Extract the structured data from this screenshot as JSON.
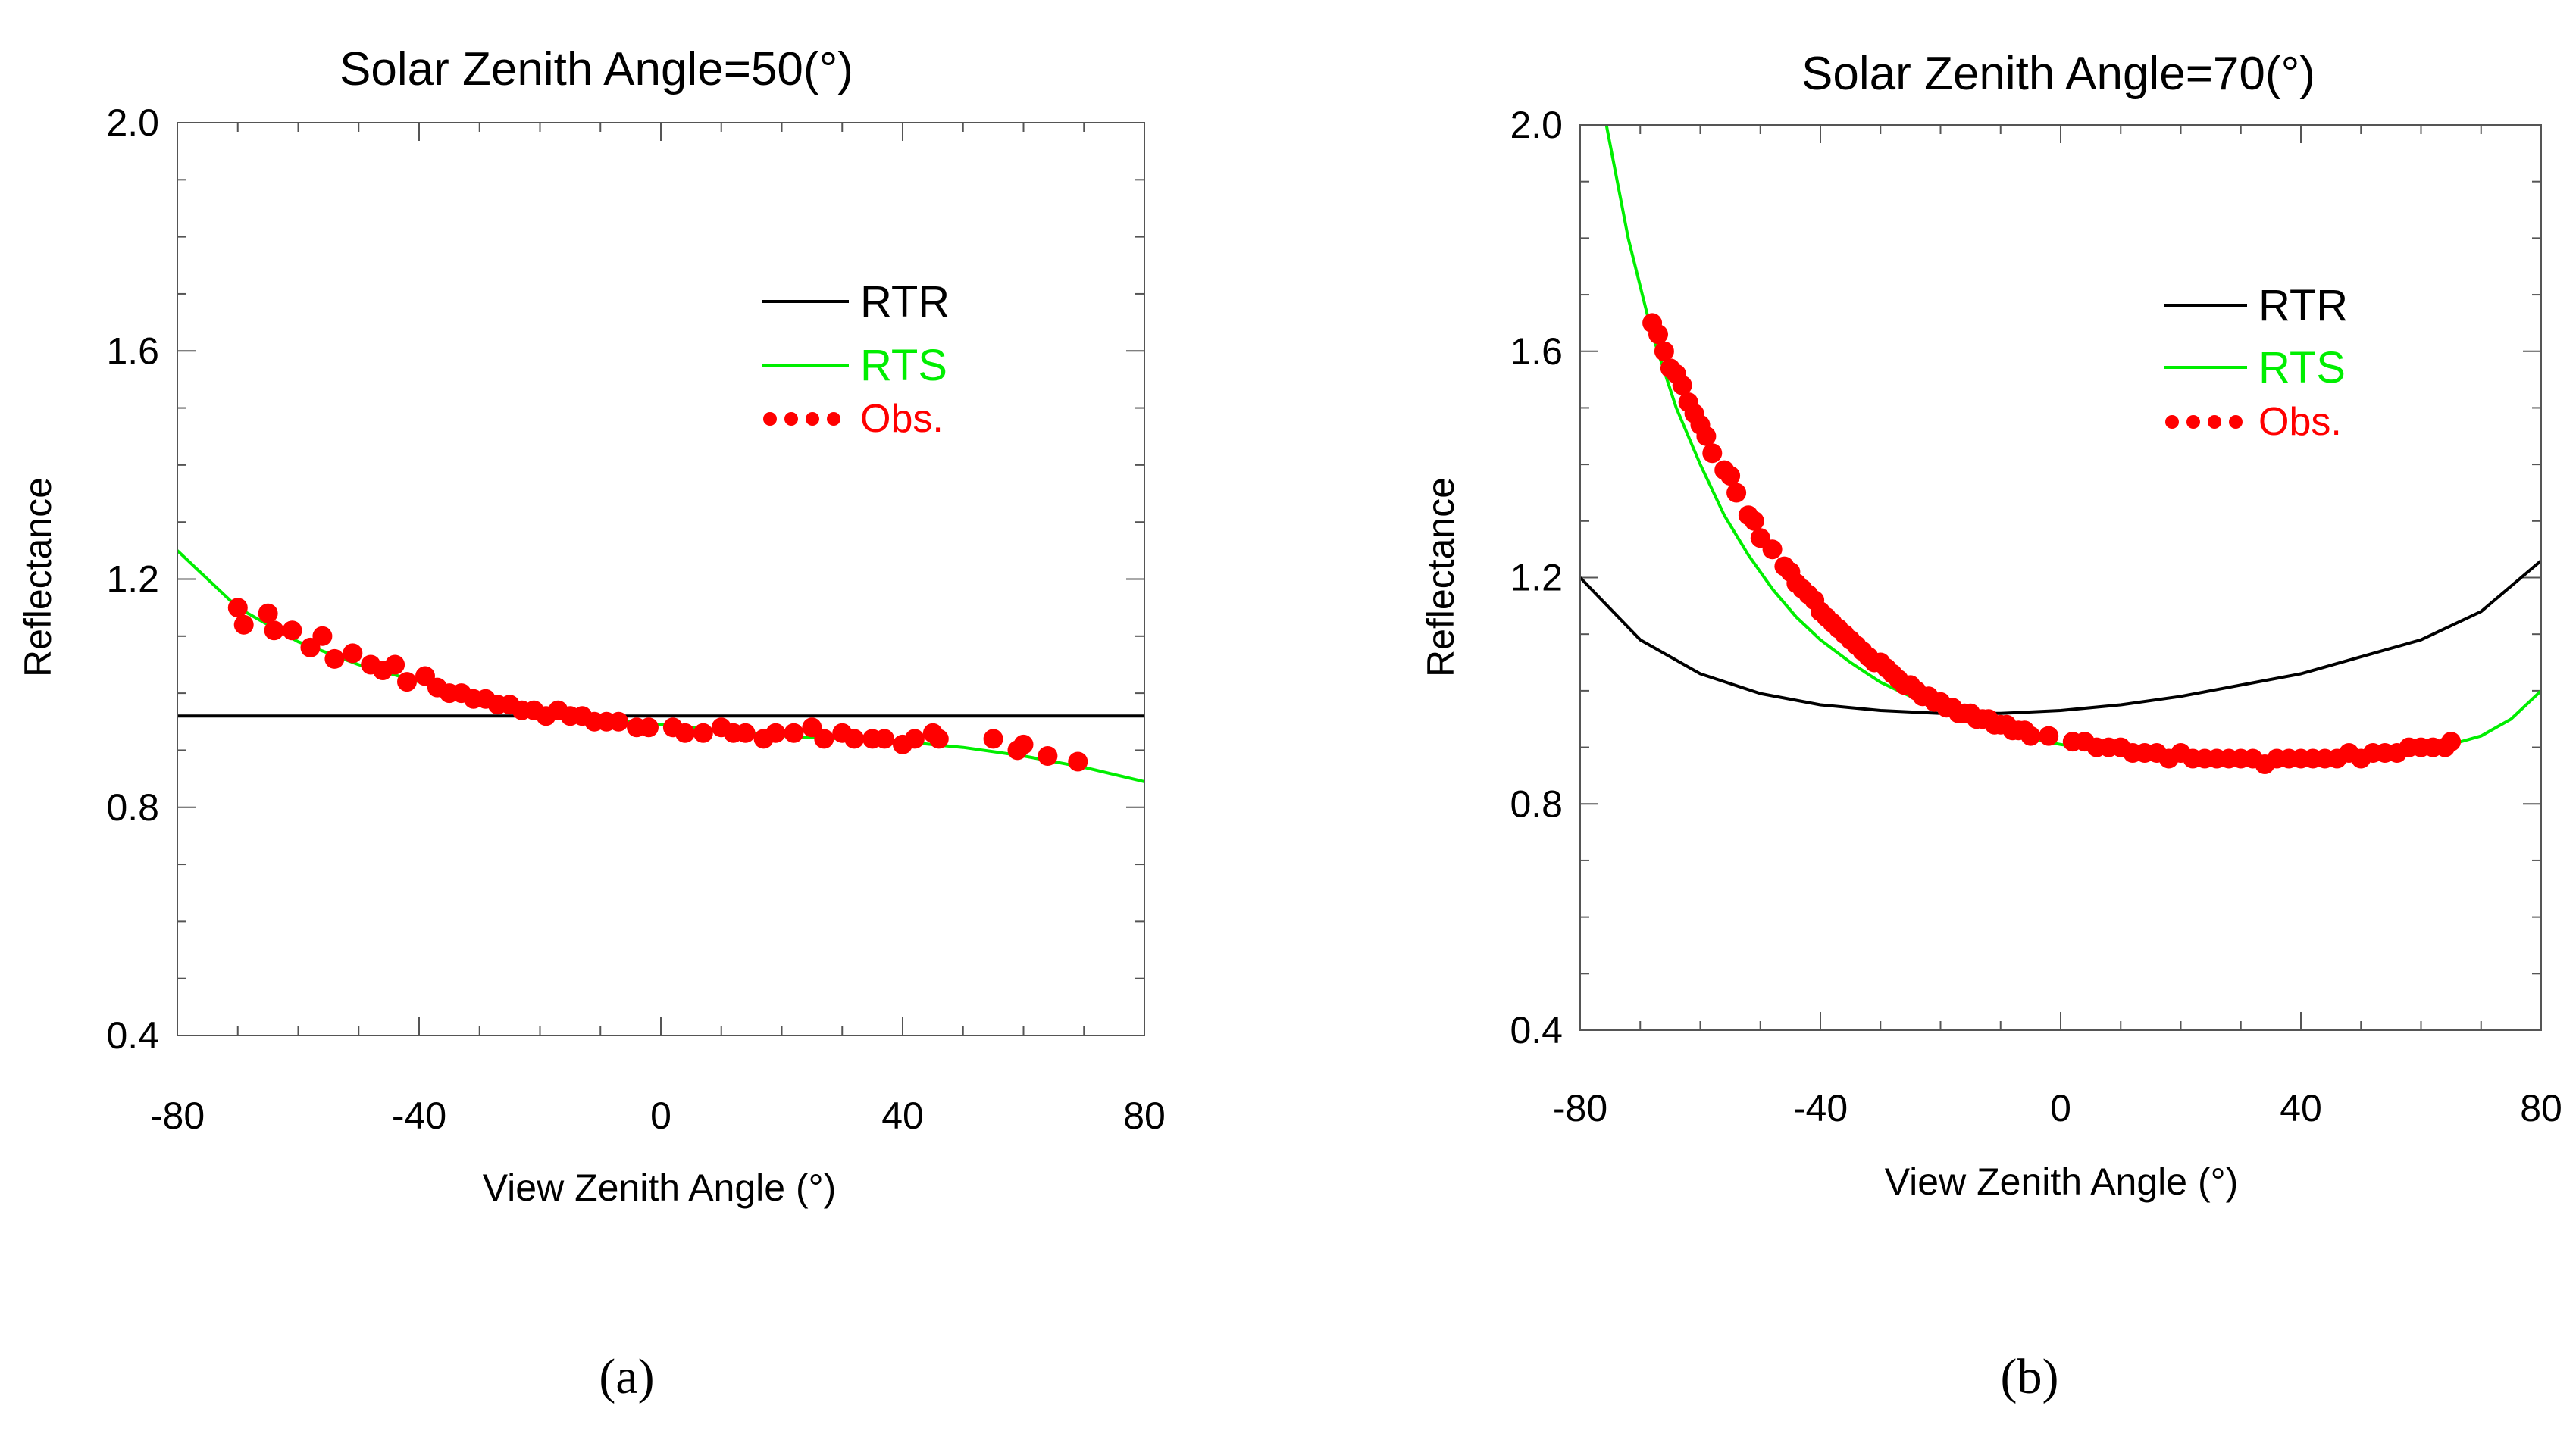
{
  "chart_data": [
    {
      "type": "line",
      "panel_label": "(a)",
      "title": "Solar Zenith Angle=50(°)",
      "xlabel": "View Zenith Angle (°)",
      "ylabel": "Reflectance",
      "xlim": [
        -80,
        80
      ],
      "ylim": [
        0.4,
        2.0
      ],
      "xticks": [
        -80,
        -40,
        0,
        40,
        80
      ],
      "yticks": [
        0.4,
        0.8,
        1.2,
        1.6,
        2.0
      ],
      "xtick_labels": [
        "-80",
        "-40",
        "0",
        "40",
        "80"
      ],
      "ytick_labels": [
        "0.4",
        "0.8",
        "1.2",
        "1.6",
        "2.0"
      ],
      "legend": [
        {
          "label": "RTR",
          "color": "#000000",
          "style": "line"
        },
        {
          "label": "RTS",
          "color": "#00ee00",
          "style": "line"
        },
        {
          "label": "Obs.",
          "color": "#ff0000",
          "style": "dots"
        }
      ],
      "series": [
        {
          "name": "RTR",
          "color": "#000000",
          "x": [
            -80,
            80
          ],
          "y": [
            0.96,
            0.96
          ]
        },
        {
          "name": "RTS",
          "color": "#00ee00",
          "x": [
            -80,
            -70,
            -60,
            -50,
            -40,
            -30,
            -20,
            -10,
            0,
            10,
            20,
            30,
            40,
            50,
            60,
            70,
            80
          ],
          "y": [
            1.25,
            1.15,
            1.09,
            1.05,
            1.02,
            0.99,
            0.97,
            0.955,
            0.945,
            0.935,
            0.925,
            0.92,
            0.915,
            0.905,
            0.89,
            0.87,
            0.845
          ]
        },
        {
          "name": "Obs.",
          "color": "#ff0000",
          "x": [
            -70,
            -69,
            -65,
            -64,
            -61,
            -58,
            -56,
            -54,
            -51,
            -48,
            -46,
            -44,
            -42,
            -39,
            -37,
            -35,
            -33,
            -31,
            -29,
            -27,
            -25,
            -23,
            -21,
            -19,
            -17,
            -15,
            -13,
            -11,
            -9,
            -7,
            -4,
            -2,
            2,
            4,
            7,
            10,
            12,
            14,
            17,
            19,
            22,
            25,
            27,
            30,
            32,
            35,
            37,
            40,
            42,
            45,
            46,
            55,
            59,
            60,
            64,
            69
          ],
          "y": [
            1.15,
            1.12,
            1.14,
            1.11,
            1.11,
            1.08,
            1.1,
            1.06,
            1.07,
            1.05,
            1.04,
            1.05,
            1.02,
            1.03,
            1.01,
            1.0,
            1.0,
            0.99,
            0.99,
            0.98,
            0.98,
            0.97,
            0.97,
            0.96,
            0.97,
            0.96,
            0.96,
            0.95,
            0.95,
            0.95,
            0.94,
            0.94,
            0.94,
            0.93,
            0.93,
            0.94,
            0.93,
            0.93,
            0.92,
            0.93,
            0.93,
            0.94,
            0.92,
            0.93,
            0.92,
            0.92,
            0.92,
            0.91,
            0.92,
            0.93,
            0.92,
            0.92,
            0.9,
            0.91,
            0.89,
            0.88
          ]
        }
      ]
    },
    {
      "type": "line",
      "panel_label": "(b)",
      "title": "Solar Zenith Angle=70(°)",
      "xlabel": "View Zenith Angle (°)",
      "ylabel": "Reflectance",
      "xlim": [
        -80,
        80
      ],
      "ylim": [
        0.4,
        2.0
      ],
      "xticks": [
        -80,
        -40,
        0,
        40,
        80
      ],
      "yticks": [
        0.4,
        0.8,
        1.2,
        1.6,
        2.0
      ],
      "xtick_labels": [
        "-80",
        "-40",
        "0",
        "40",
        "80"
      ],
      "ytick_labels": [
        "0.4",
        "0.8",
        "1.2",
        "1.6",
        "2.0"
      ],
      "legend": [
        {
          "label": "RTR",
          "color": "#000000",
          "style": "line"
        },
        {
          "label": "RTS",
          "color": "#00ee00",
          "style": "line"
        },
        {
          "label": "Obs.",
          "color": "#ff0000",
          "style": "dots"
        }
      ],
      "series": [
        {
          "name": "RTR",
          "color": "#000000",
          "x": [
            -80,
            -70,
            -60,
            -50,
            -40,
            -30,
            -20,
            -10,
            0,
            10,
            20,
            30,
            40,
            50,
            60,
            70,
            80
          ],
          "y": [
            1.2,
            1.09,
            1.03,
            0.995,
            0.975,
            0.965,
            0.96,
            0.96,
            0.965,
            0.975,
            0.99,
            1.01,
            1.03,
            1.06,
            1.09,
            1.14,
            1.23
          ]
        },
        {
          "name": "RTS",
          "color": "#00ee00",
          "x": [
            -76,
            -72,
            -68,
            -64,
            -60,
            -56,
            -52,
            -48,
            -44,
            -40,
            -35,
            -30,
            -25,
            -20,
            -15,
            -10,
            -5,
            0,
            10,
            20,
            30,
            40,
            50,
            60,
            70,
            75,
            80
          ],
          "y": [
            2.02,
            1.8,
            1.63,
            1.5,
            1.4,
            1.31,
            1.24,
            1.18,
            1.13,
            1.09,
            1.05,
            1.015,
            0.99,
            0.965,
            0.945,
            0.93,
            0.915,
            0.905,
            0.89,
            0.88,
            0.875,
            0.875,
            0.88,
            0.89,
            0.92,
            0.95,
            1.0
          ]
        },
        {
          "name": "Obs.",
          "color": "#ff0000",
          "x": [
            -68,
            -67,
            -66,
            -65,
            -64,
            -63,
            -62,
            -61,
            -60,
            -59,
            -58,
            -56,
            -55,
            -54,
            -52,
            -51,
            -50,
            -48,
            -46,
            -45,
            -44,
            -43,
            -42,
            -41,
            -40,
            -39,
            -38,
            -37,
            -36,
            -35,
            -34,
            -33,
            -32,
            -31,
            -30,
            -29,
            -28,
            -27,
            -26,
            -25,
            -24,
            -23,
            -22,
            -21,
            -20,
            -19,
            -18,
            -17,
            -16,
            -15,
            -14,
            -13,
            -12,
            -11,
            -10,
            -9,
            -8,
            -7,
            -6,
            -5,
            -2,
            2,
            4,
            6,
            8,
            10,
            12,
            14,
            16,
            18,
            20,
            22,
            24,
            26,
            28,
            30,
            32,
            34,
            36,
            38,
            40,
            42,
            44,
            46,
            48,
            50,
            52,
            54,
            56,
            58,
            60,
            62,
            64,
            65
          ],
          "y": [
            1.65,
            1.63,
            1.6,
            1.57,
            1.56,
            1.54,
            1.51,
            1.49,
            1.47,
            1.45,
            1.42,
            1.39,
            1.38,
            1.35,
            1.31,
            1.3,
            1.27,
            1.25,
            1.22,
            1.21,
            1.19,
            1.18,
            1.17,
            1.16,
            1.14,
            1.13,
            1.12,
            1.11,
            1.1,
            1.09,
            1.08,
            1.07,
            1.06,
            1.05,
            1.05,
            1.04,
            1.03,
            1.02,
            1.01,
            1.01,
            1.0,
            0.99,
            0.99,
            0.98,
            0.98,
            0.97,
            0.97,
            0.96,
            0.96,
            0.96,
            0.95,
            0.95,
            0.95,
            0.94,
            0.94,
            0.94,
            0.93,
            0.93,
            0.93,
            0.92,
            0.92,
            0.91,
            0.91,
            0.9,
            0.9,
            0.9,
            0.89,
            0.89,
            0.89,
            0.88,
            0.89,
            0.88,
            0.88,
            0.88,
            0.88,
            0.88,
            0.88,
            0.87,
            0.88,
            0.88,
            0.88,
            0.88,
            0.88,
            0.88,
            0.89,
            0.88,
            0.89,
            0.89,
            0.89,
            0.9,
            0.9,
            0.9,
            0.9,
            0.91
          ]
        }
      ]
    }
  ]
}
